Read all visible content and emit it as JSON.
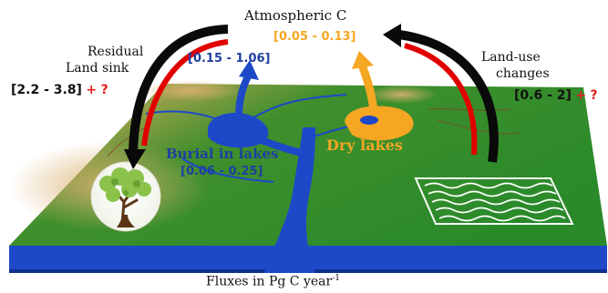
{
  "colors": {
    "land_green": "#2f8a2a",
    "land_tan": "#c8a158",
    "water_blue": "#1d49c8",
    "dry_orange": "#f5a623",
    "arrow_red": "#e10000",
    "arrow_black": "#0a0a0a",
    "lake_text_blue": "#1f3fa0",
    "question_red": "#e21d1d"
  },
  "atmosphere": {
    "label": "Atmospheric C",
    "dry_lakes_flux": "[0.05 - 0.13]",
    "lakes_emission_flux": "[0.15 - 1.06]"
  },
  "residual_sink": {
    "line1": "Residual",
    "line2": "Land sink",
    "flux": "[2.2 - 3.8]",
    "plus": "+",
    "question": "?",
    "icon": "tree-icon"
  },
  "land_use": {
    "line1": "Land-use",
    "line2": "changes",
    "flux": "[0.6 - 2]",
    "plus": "+",
    "question": "?",
    "icon": "cropland-waves-icon"
  },
  "burial": {
    "label": "Burial in lakes",
    "flux": "[0.06 - 0.25]"
  },
  "dry_lakes": {
    "label": "Dry lakes"
  },
  "footer": {
    "units_prefix": "Fluxes in Pg C year",
    "units_exponent": "-1"
  }
}
